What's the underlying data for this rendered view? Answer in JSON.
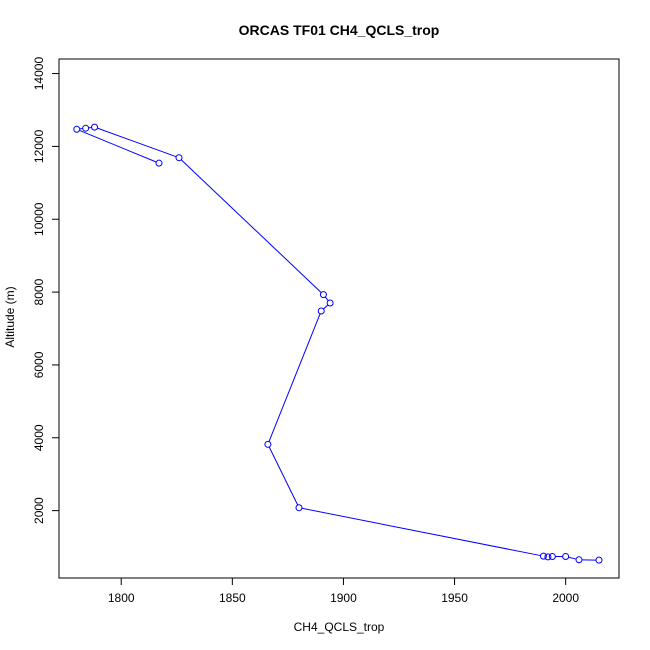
{
  "chart_data": {
    "type": "line",
    "title": "ORCAS TF01 CH4_QCLS_trop",
    "xlabel": "CH4_QCLS_trop",
    "ylabel": "Altitude (m)",
    "xlim": [
      1772,
      2024
    ],
    "ylim": [
      150,
      14400
    ],
    "xticks": [
      1800,
      1850,
      1900,
      1950,
      2000
    ],
    "yticks": [
      2000,
      4000,
      6000,
      8000,
      10000,
      12000,
      14000
    ],
    "grid": false,
    "legend": "none",
    "series": [
      {
        "color": "#0000ff",
        "marker": "open-circle",
        "points": [
          {
            "x": 2015,
            "y": 640
          },
          {
            "x": 2006,
            "y": 650
          },
          {
            "x": 2000,
            "y": 740
          },
          {
            "x": 1994,
            "y": 740
          },
          {
            "x": 1992,
            "y": 730
          },
          {
            "x": 1990,
            "y": 750
          },
          {
            "x": 1880,
            "y": 2080
          },
          {
            "x": 1866,
            "y": 3820
          },
          {
            "x": 1890,
            "y": 7480
          },
          {
            "x": 1894,
            "y": 7700
          },
          {
            "x": 1891,
            "y": 7930
          },
          {
            "x": 1826,
            "y": 11690
          },
          {
            "x": 1788,
            "y": 12530
          },
          {
            "x": 1784,
            "y": 12500
          },
          {
            "x": 1780,
            "y": 12470
          },
          {
            "x": 1817,
            "y": 11540
          }
        ]
      }
    ]
  }
}
